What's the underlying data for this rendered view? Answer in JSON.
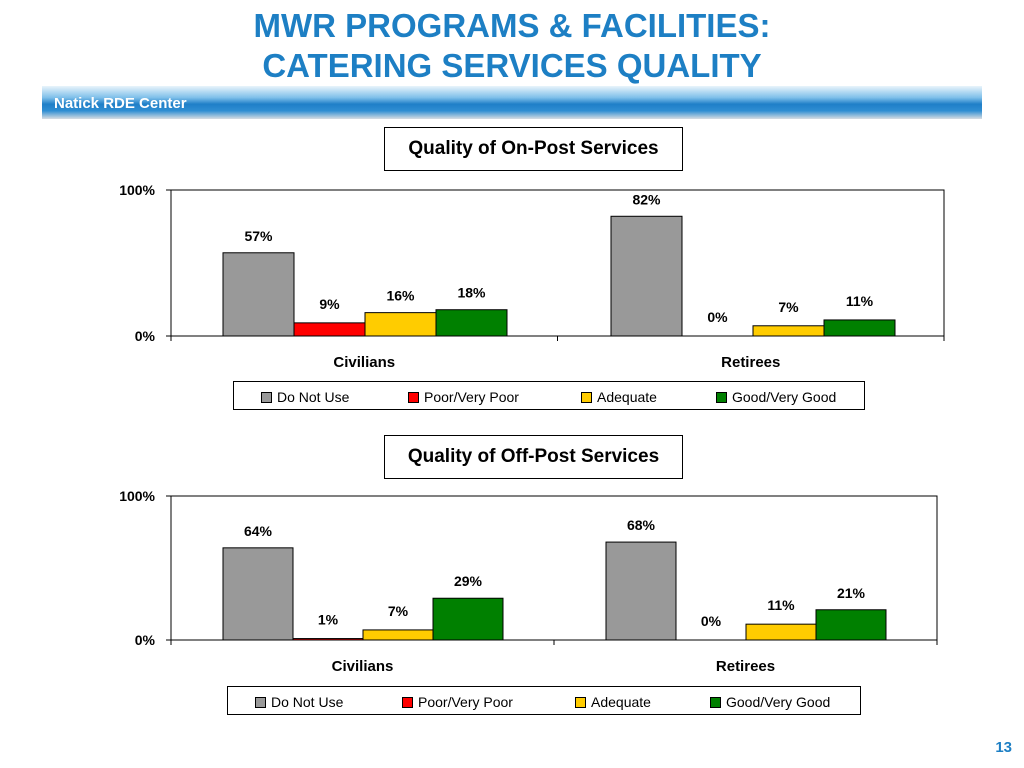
{
  "slide": {
    "title_line1": "MWR PROGRAMS & FACILITIES:",
    "title_line2": "CATERING SERVICES QUALITY",
    "banner_text": "Natick RDE Center",
    "page_number": "13"
  },
  "colors": {
    "title_blue": "#1d7fc4",
    "do_not_use": "#999999",
    "poor": "#ff0000",
    "adequate": "#ffcc00",
    "good": "#008000"
  },
  "chart_data": [
    {
      "type": "bar",
      "title": "Quality of On-Post Services",
      "categories": [
        "Civilians",
        "Retirees"
      ],
      "yticks": [
        "100%",
        "0%"
      ],
      "ylim": [
        0,
        100
      ],
      "series": [
        {
          "name": "Do Not Use",
          "color": "#999999",
          "values": [
            57,
            82
          ],
          "labels": [
            "57%",
            "82%"
          ]
        },
        {
          "name": "Poor/Very Poor",
          "color": "#ff0000",
          "values": [
            9,
            0
          ],
          "labels": [
            "9%",
            "0%"
          ]
        },
        {
          "name": "Adequate",
          "color": "#ffcc00",
          "values": [
            16,
            7
          ],
          "labels": [
            "16%",
            "7%"
          ]
        },
        {
          "name": "Good/Very Good",
          "color": "#008000",
          "values": [
            18,
            11
          ],
          "labels": [
            "18%",
            "11%"
          ]
        }
      ],
      "legend_position": "bottom",
      "grid": false
    },
    {
      "type": "bar",
      "title": "Quality of Off-Post Services",
      "categories": [
        "Civilians",
        "Retirees"
      ],
      "yticks": [
        "100%",
        "0%"
      ],
      "ylim": [
        0,
        100
      ],
      "series": [
        {
          "name": "Do Not Use",
          "color": "#999999",
          "values": [
            64,
            68
          ],
          "labels": [
            "64%",
            "68%"
          ]
        },
        {
          "name": "Poor/Very Poor",
          "color": "#ff0000",
          "values": [
            1,
            0
          ],
          "labels": [
            "1%",
            "0%"
          ]
        },
        {
          "name": "Adequate",
          "color": "#ffcc00",
          "values": [
            7,
            11
          ],
          "labels": [
            "7%",
            "11%"
          ]
        },
        {
          "name": "Good/Very Good",
          "color": "#008000",
          "values": [
            29,
            21
          ],
          "labels": [
            "29%",
            "21%"
          ]
        }
      ],
      "legend_position": "bottom",
      "grid": false
    }
  ]
}
